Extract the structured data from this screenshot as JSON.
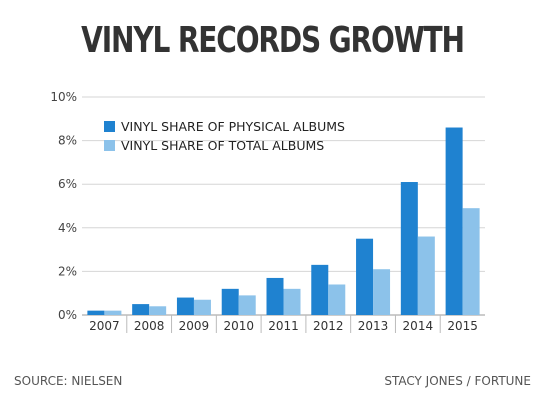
{
  "chart_data": {
    "type": "bar",
    "title": "VINYL RECORDS GROWTH",
    "categories": [
      "2007",
      "2008",
      "2009",
      "2010",
      "2011",
      "2012",
      "2013",
      "2014",
      "2015"
    ],
    "series": [
      {
        "name": "VINYL SHARE OF PHYSICAL ALBUMS",
        "color": "#1f82d0",
        "values": [
          0.2,
          0.5,
          0.8,
          1.2,
          1.7,
          2.3,
          3.5,
          6.1,
          8.6
        ]
      },
      {
        "name": "VINYL SHARE OF TOTAL ALBUMS",
        "color": "#8cc2ea",
        "values": [
          0.2,
          0.4,
          0.7,
          0.9,
          1.2,
          1.4,
          2.1,
          3.6,
          4.9
        ]
      }
    ],
    "ylim": [
      0,
      10
    ],
    "yticks": [
      "0%",
      "2%",
      "4%",
      "6%",
      "8%",
      "10%"
    ],
    "grid": true,
    "legend_position": "top-left"
  },
  "footer": {
    "source": "SOURCE: NIELSEN",
    "credit": "STACY JONES / FORTUNE"
  }
}
